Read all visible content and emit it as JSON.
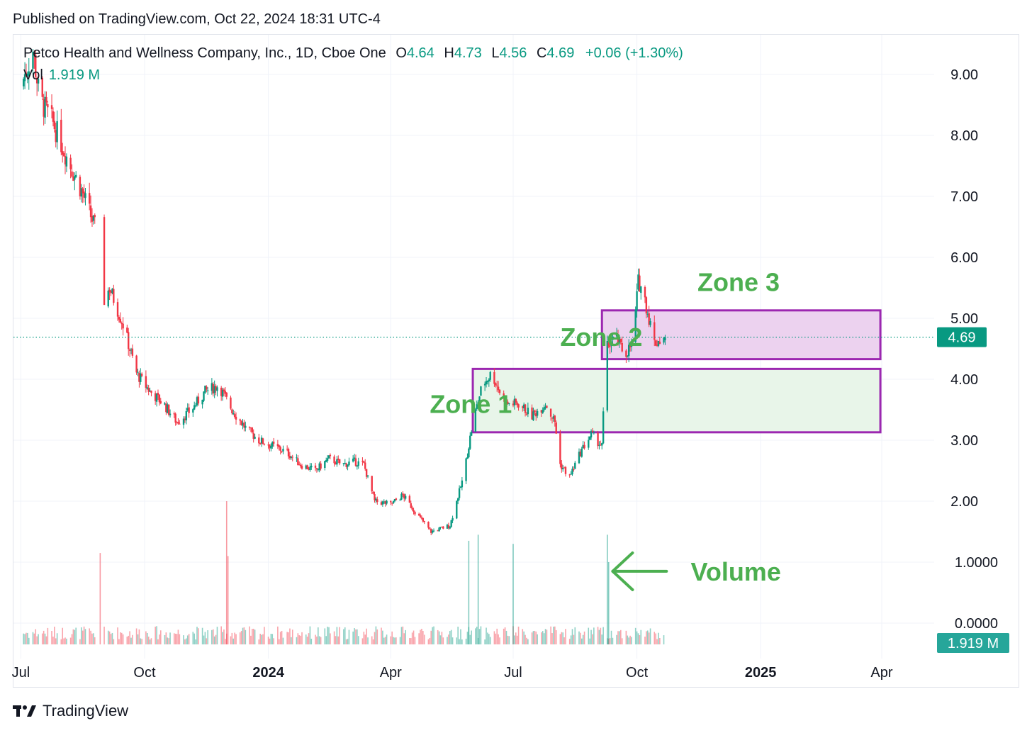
{
  "header": {
    "published": "Published on TradingView.com, Oct 22, 2024 18:31 UTC-4"
  },
  "legend": {
    "symbol": "Petco Health and Wellness Company, Inc., 1D, Cboe One",
    "o_label": "O",
    "o_value": "4.64",
    "h_label": "H",
    "h_value": "4.73",
    "l_label": "L",
    "l_value": "4.56",
    "c_label": "C",
    "c_value": "4.69",
    "change": "+0.06 (+1.30%)",
    "vol_label": "Vol",
    "vol_value": "1.919 M"
  },
  "brand": {
    "name": "TradingView"
  },
  "colors": {
    "up": "#089981",
    "down": "#f23645",
    "zone_border": "#9c27b0",
    "annotation": "#4caf50"
  },
  "chart_data": {
    "type": "candlestick",
    "title": "Petco Health and Wellness Company, Inc., 1D, Cboe One",
    "x_ticks": [
      {
        "date": "2023-07-01",
        "label": "Jul",
        "bold": false
      },
      {
        "date": "2023-10-01",
        "label": "Oct",
        "bold": false
      },
      {
        "date": "2024-01-01",
        "label": "2024",
        "bold": true
      },
      {
        "date": "2024-04-01",
        "label": "Apr",
        "bold": false
      },
      {
        "date": "2024-07-01",
        "label": "Jul",
        "bold": false
      },
      {
        "date": "2024-10-01",
        "label": "Oct",
        "bold": false
      },
      {
        "date": "2025-01-01",
        "label": "2025",
        "bold": true
      },
      {
        "date": "2025-04-01",
        "label": "Apr",
        "bold": false
      }
    ],
    "x_range": [
      "2023-06-25",
      "2025-05-10"
    ],
    "price_ticks": [
      "9.00",
      "8.00",
      "7.00",
      "6.00",
      "5.00",
      "4.00",
      "3.00",
      "2.00"
    ],
    "volume_ticks": [
      "1.0000",
      "0.0000"
    ],
    "price_range": [
      1.0,
      9.6
    ],
    "last_price": "4.69",
    "last_volume": "1.919 M",
    "price_path": [
      [
        "2023-07-01",
        8.8
      ],
      [
        "2023-07-10",
        9.4
      ],
      [
        "2023-07-15",
        8.6
      ],
      [
        "2023-07-25",
        8.2
      ],
      [
        "2023-08-05",
        7.6
      ],
      [
        "2023-08-15",
        7.1
      ],
      [
        "2023-08-25",
        6.5
      ],
      [
        "2023-09-01",
        5.3
      ],
      [
        "2023-09-05",
        5.5
      ],
      [
        "2023-09-15",
        4.9
      ],
      [
        "2023-09-25",
        4.1
      ],
      [
        "2023-10-05",
        3.8
      ],
      [
        "2023-10-15",
        3.6
      ],
      [
        "2023-10-25",
        3.3
      ],
      [
        "2023-11-05",
        3.5
      ],
      [
        "2023-11-15",
        3.8
      ],
      [
        "2023-11-25",
        3.9
      ],
      [
        "2023-12-05",
        3.5
      ],
      [
        "2023-12-15",
        3.2
      ],
      [
        "2023-12-25",
        3.0
      ],
      [
        "2024-01-05",
        2.9
      ],
      [
        "2024-01-15",
        2.8
      ],
      [
        "2024-01-25",
        2.6
      ],
      [
        "2024-02-05",
        2.5
      ],
      [
        "2024-02-15",
        2.7
      ],
      [
        "2024-02-25",
        2.6
      ],
      [
        "2024-03-05",
        2.65
      ],
      [
        "2024-03-12",
        2.6
      ],
      [
        "2024-03-20",
        2.0
      ],
      [
        "2024-04-01",
        1.95
      ],
      [
        "2024-04-10",
        2.1
      ],
      [
        "2024-04-20",
        1.8
      ],
      [
        "2024-05-01",
        1.5
      ],
      [
        "2024-05-15",
        1.6
      ],
      [
        "2024-05-25",
        2.4
      ],
      [
        "2024-06-01",
        3.3
      ],
      [
        "2024-06-08",
        3.9
      ],
      [
        "2024-06-15",
        4.1
      ],
      [
        "2024-06-25",
        3.6
      ],
      [
        "2024-07-05",
        3.6
      ],
      [
        "2024-07-15",
        3.4
      ],
      [
        "2024-07-25",
        3.6
      ],
      [
        "2024-08-01",
        3.3
      ],
      [
        "2024-08-05",
        2.6
      ],
      [
        "2024-08-12",
        2.4
      ],
      [
        "2024-08-20",
        2.8
      ],
      [
        "2024-08-28",
        3.1
      ],
      [
        "2024-09-05",
        2.9
      ],
      [
        "2024-09-08",
        4.5
      ],
      [
        "2024-09-15",
        4.7
      ],
      [
        "2024-09-22",
        4.4
      ],
      [
        "2024-09-28",
        4.6
      ],
      [
        "2024-10-02",
        5.6
      ],
      [
        "2024-10-05",
        5.5
      ],
      [
        "2024-10-10",
        5.0
      ],
      [
        "2024-10-14",
        4.6
      ],
      [
        "2024-10-22",
        4.69
      ]
    ],
    "volume_spikes": [
      [
        "2023-08-29",
        1.15
      ],
      [
        "2023-12-01",
        2.0
      ],
      [
        "2023-12-02",
        1.1
      ],
      [
        "2024-05-29",
        1.35
      ],
      [
        "2024-06-05",
        1.45
      ],
      [
        "2024-07-01",
        1.3
      ],
      [
        "2024-09-09",
        1.45
      ],
      [
        "2024-09-10",
        1.0
      ]
    ],
    "zones": [
      {
        "name": "Zone 1",
        "start": "2024-06-01",
        "end": "2025-03-31",
        "low": 3.13,
        "high": 4.17,
        "fill": "#e8f5e9"
      },
      {
        "name": "Zone 2",
        "start": "2024-09-05",
        "end": "2025-03-31",
        "low": 4.33,
        "high": 5.13,
        "fill": "#ecd2ef"
      }
    ],
    "annotations": [
      {
        "text": "Zone 1",
        "date": "2024-04-30",
        "price": 3.6
      },
      {
        "text": "Zone 2",
        "date": "2024-08-05",
        "price": 4.7
      },
      {
        "text": "Zone 3",
        "date": "2024-11-15",
        "price": 5.6
      },
      {
        "text": "Volume",
        "date": "2024-11-10",
        "price": 0.85
      }
    ],
    "volume_arrow": {
      "from": "2024-10-23",
      "to": "2024-09-13",
      "value": 0.85
    }
  }
}
